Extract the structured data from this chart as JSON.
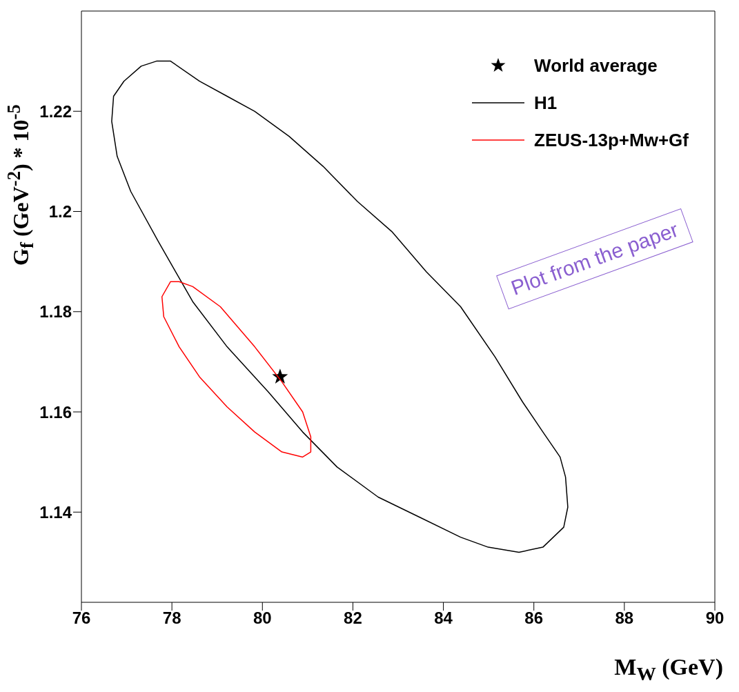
{
  "chart_data": {
    "type": "scatter",
    "xlabel": "M$_{W}$ (GeV)",
    "ylabel": "G$_{f}$ (GeV$^{-2}$) * 10$^{-5}$",
    "xlim": [
      76,
      90
    ],
    "xticks": [
      76,
      78,
      80,
      82,
      84,
      86,
      88,
      90
    ],
    "ylim": [
      1.122,
      1.24
    ],
    "yticks": [
      1.14,
      1.16,
      1.18,
      1.2,
      1.22
    ],
    "grid": false,
    "legend": "top right",
    "annotations": [
      "H1",
      "ZEUS-13p+Mw+Gf",
      "Plot from the paper"
    ],
    "series": [
      {
        "name": "World average",
        "marker": "star",
        "color": "#000000",
        "x": [
          80.39
        ],
        "values": [
          1.167
        ]
      }
    ]
  }
}
